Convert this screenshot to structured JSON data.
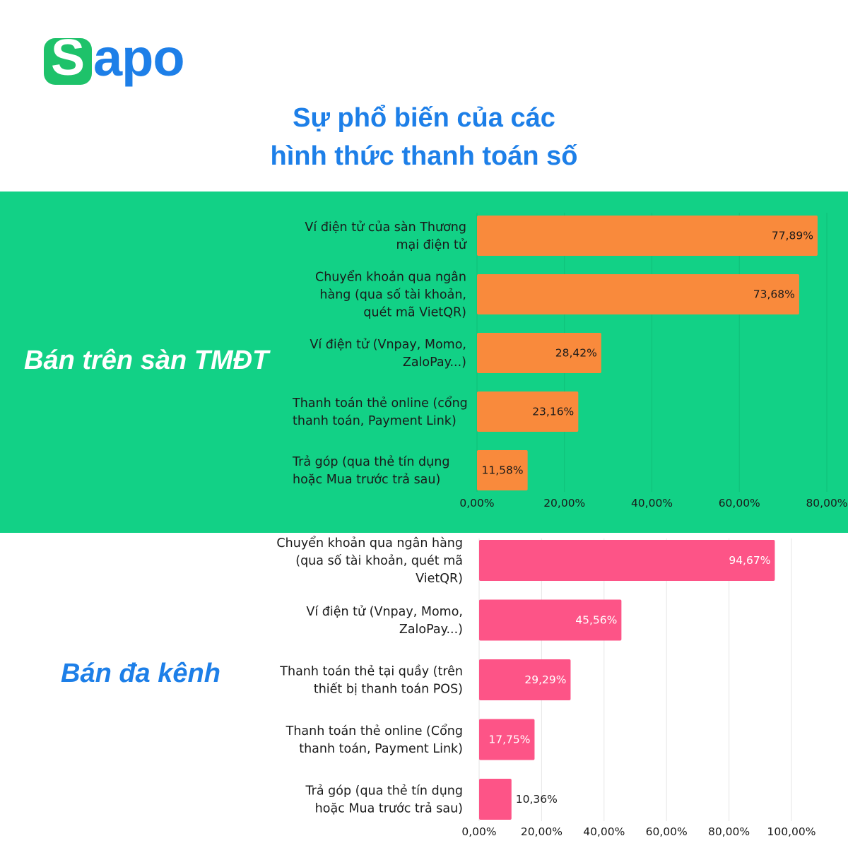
{
  "brand": {
    "logo_initial": "S",
    "logo_rest": "apo",
    "logo_green": "#1ec26a",
    "logo_blue": "#1d7fe8"
  },
  "colors": {
    "title": "#1d7fe8",
    "top_section_bg": "#12d186",
    "top_bars": "#f98a3c",
    "bottom_bars": "#fd5487",
    "grid": "#0fbf78",
    "grid_light": "#e6e6e6"
  },
  "header": {
    "title_line1": "Sự phổ biến của các",
    "title_line2": "hình thức thanh toán số"
  },
  "chart_data": [
    {
      "type": "bar",
      "orientation": "horizontal",
      "group_label": "Bán trên sàn TMĐT",
      "categories": [
        [
          "Ví điện tử của sàn Thương",
          "mại điện tử"
        ],
        [
          "Chuyển khoản qua ngân",
          "hàng (qua số tài khoản,",
          "quét mã VietQR)"
        ],
        [
          "Ví điện tử (Vnpay, Momo,",
          "ZaloPay...)"
        ],
        [
          "Thanh toán thẻ online (cổng",
          "thanh toán, Payment Link)"
        ],
        [
          "Trả góp (qua thẻ tín dụng",
          "hoặc Mua trước trả sau)"
        ]
      ],
      "values": [
        77.89,
        73.68,
        28.42,
        23.16,
        11.58
      ],
      "value_labels": [
        "77,89%",
        "73,68%",
        "28,42%",
        "23,16%",
        "11,58%"
      ],
      "xlim": [
        0,
        80
      ],
      "xticks": [
        0,
        20,
        40,
        60,
        80
      ],
      "xtick_labels": [
        "0,00%",
        "20,00%",
        "40,00%",
        "60,00%",
        "80,00%"
      ],
      "grid": true
    },
    {
      "type": "bar",
      "orientation": "horizontal",
      "group_label": "Bán đa kênh",
      "categories": [
        [
          "Chuyển khoản qua ngân hàng",
          "(qua số tài khoản, quét mã",
          "VietQR)"
        ],
        [
          "Ví điện tử (Vnpay, Momo,",
          "ZaloPay...)"
        ],
        [
          "Thanh toán thẻ tại quầy (trên",
          "thiết bị thanh toán POS)"
        ],
        [
          "Thanh toán thẻ online (Cổng",
          "thanh toán, Payment Link)"
        ],
        [
          "Trả góp (qua thẻ tín dụng",
          "hoặc Mua trước trả sau)"
        ]
      ],
      "values": [
        94.67,
        45.56,
        29.29,
        17.75,
        10.36
      ],
      "value_labels": [
        "94,67%",
        "45,56%",
        "29,29%",
        "17,75%",
        "10,36%"
      ],
      "xlim": [
        0,
        100
      ],
      "xticks": [
        0,
        20,
        40,
        60,
        80,
        100
      ],
      "xtick_labels": [
        "0,00%",
        "20,00%",
        "40,00%",
        "60,00%",
        "80,00%",
        "100,00%"
      ],
      "grid": true
    }
  ]
}
